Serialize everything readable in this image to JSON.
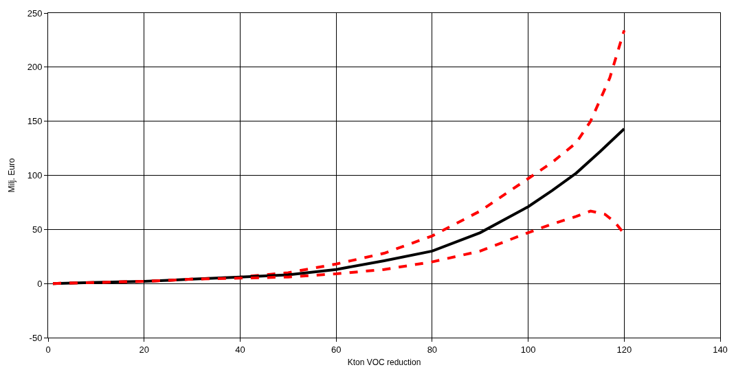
{
  "chart_data": {
    "type": "line",
    "xlabel": "Kton VOC reduction",
    "ylabel": "Milj. Euro",
    "xlim": [
      0,
      140
    ],
    "xticks": [
      0,
      20,
      40,
      60,
      80,
      100,
      120,
      140
    ],
    "ylim": [
      -50,
      250
    ],
    "yticks": [
      -50,
      0,
      50,
      100,
      150,
      200,
      250
    ],
    "grid": true,
    "series": [
      {
        "color": "#ff0000",
        "line_style": "dashed",
        "x": [
          1,
          10,
          20,
          30,
          40,
          50,
          60,
          70,
          80,
          90,
          100,
          105,
          110,
          113,
          117,
          120
        ],
        "values": [
          0,
          1,
          2,
          4,
          6,
          10,
          18,
          28,
          44,
          67,
          97,
          112,
          130,
          150,
          190,
          234
        ]
      },
      {
        "color": "#000000",
        "line_style": "solid",
        "x": [
          1,
          10,
          20,
          30,
          40,
          50,
          60,
          70,
          80,
          90,
          100,
          105,
          110,
          115,
          120
        ],
        "values": [
          0,
          1,
          2,
          4,
          6,
          8,
          13,
          21,
          30,
          47,
          71,
          86,
          102,
          122,
          143
        ]
      },
      {
        "color": "#ff0000",
        "line_style": "dashed",
        "x": [
          1,
          10,
          20,
          30,
          40,
          50,
          60,
          70,
          80,
          90,
          100,
          105,
          110,
          113,
          116,
          118,
          120
        ],
        "values": [
          0,
          1,
          2,
          4,
          5,
          6,
          9,
          13,
          20,
          30,
          47,
          55,
          62,
          67,
          64,
          57,
          46
        ]
      }
    ]
  }
}
